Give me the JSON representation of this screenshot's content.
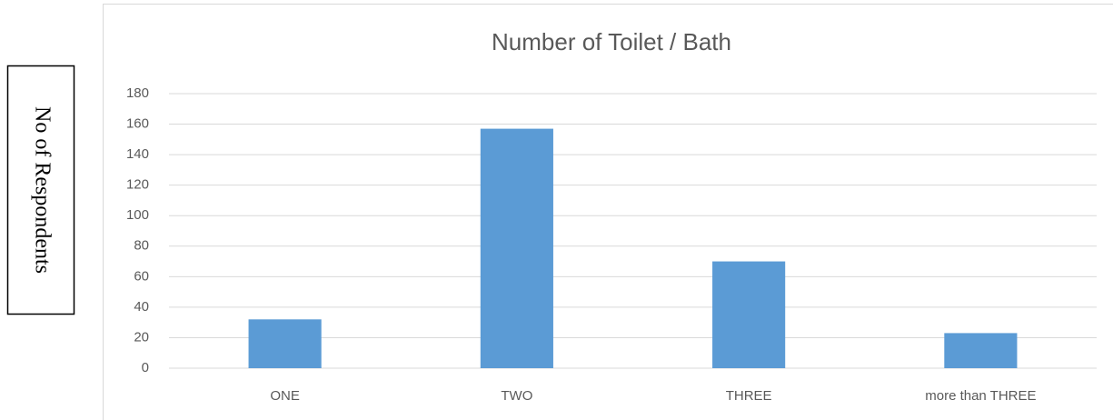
{
  "chart_data": {
    "type": "bar",
    "title": "Number of Toilet / Bath",
    "ylabel": "No of Respondents",
    "categories": [
      "ONE",
      "TWO",
      "THREE",
      "more than THREE"
    ],
    "values": [
      32,
      157,
      70,
      23
    ],
    "color": "#5b9bd5",
    "ylim": [
      0,
      180
    ],
    "yticks": [
      0,
      20,
      40,
      60,
      80,
      100,
      120,
      140,
      160,
      180
    ],
    "grid": true
  }
}
